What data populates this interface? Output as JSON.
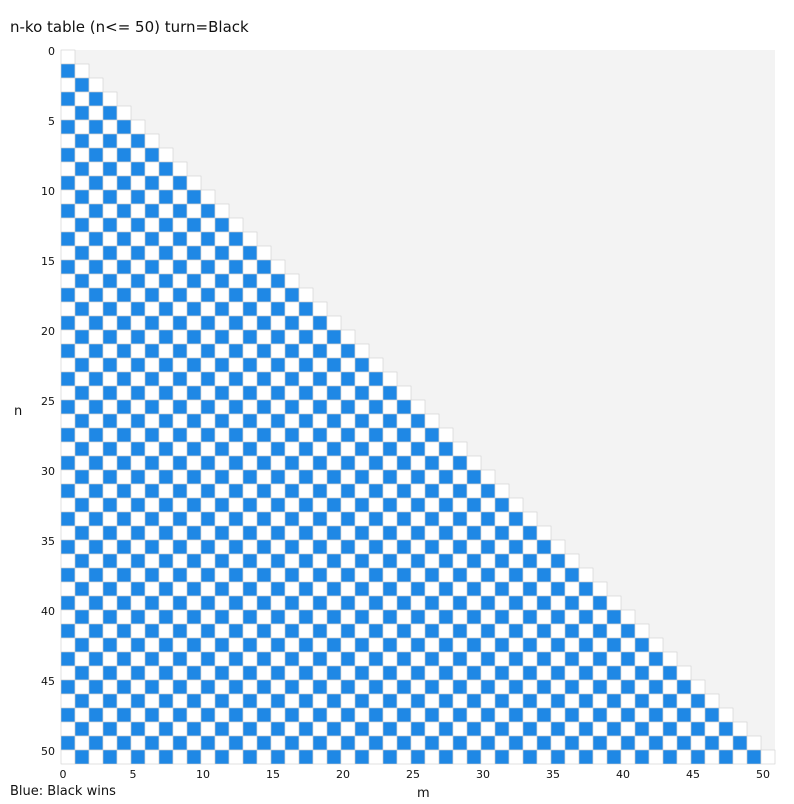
{
  "chart_data": {
    "type": "heatmap",
    "title": "n-ko table (n<= 50) turn=Black",
    "xlabel": "m",
    "ylabel": "n",
    "x_range": [
      0,
      50
    ],
    "y_range": [
      0,
      50
    ],
    "x_ticks": [
      0,
      5,
      10,
      15,
      20,
      25,
      30,
      35,
      40,
      45,
      50
    ],
    "y_ticks": [
      0,
      5,
      10,
      15,
      20,
      25,
      30,
      35,
      40,
      45,
      50
    ],
    "cell_rule": "Cells with m <= n are filled; blue when (n + m) is odd, white when even; cells with m > n are shaded gray.",
    "legend_note": "Blue: Black wins",
    "colors": {
      "black_wins": "#1f88e5",
      "other": "#ffffff",
      "undefined": "#f3f3f3",
      "gridline": "#cfcfcf"
    }
  }
}
